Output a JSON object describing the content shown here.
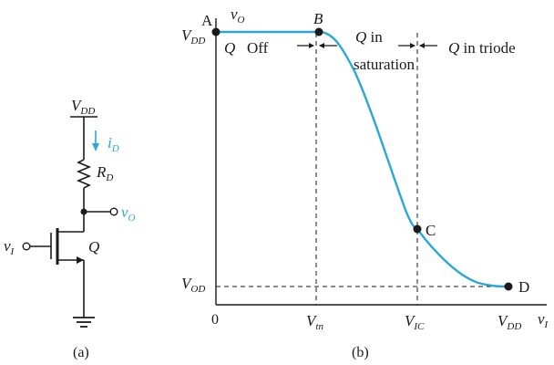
{
  "circuit": {
    "vdd_label": "V",
    "vdd_sub": "DD",
    "id_label": "i",
    "id_sub": "D",
    "rd_label": "R",
    "rd_sub": "D",
    "vo_label": "v",
    "vo_sub": "O",
    "vi_label": "v",
    "vi_sub": "I",
    "q_label": "Q",
    "caption": "(a)"
  },
  "plot": {
    "y_axis_label": "v",
    "y_axis_sub": "O",
    "x_axis_label": "v",
    "x_axis_sub": "I",
    "y_top_label": "V",
    "y_top_sub": "DD",
    "y_bottom_label": "V",
    "y_bottom_sub": "OD",
    "origin": "0",
    "x_tn_label": "V",
    "x_tn_sub": "tn",
    "x_ic_label": "V",
    "x_ic_sub": "IC",
    "x_dd_label": "V",
    "x_dd_sub": "DD",
    "point_a": "A",
    "point_b": "B",
    "point_c": "C",
    "point_d": "D",
    "region_off_q": "Q",
    "region_off": "Off",
    "region_sat_line1": "Q in",
    "region_sat_line2": "saturation",
    "region_triode": "Q in triode",
    "caption": "(b)",
    "curve_color": "#29a8d8"
  }
}
